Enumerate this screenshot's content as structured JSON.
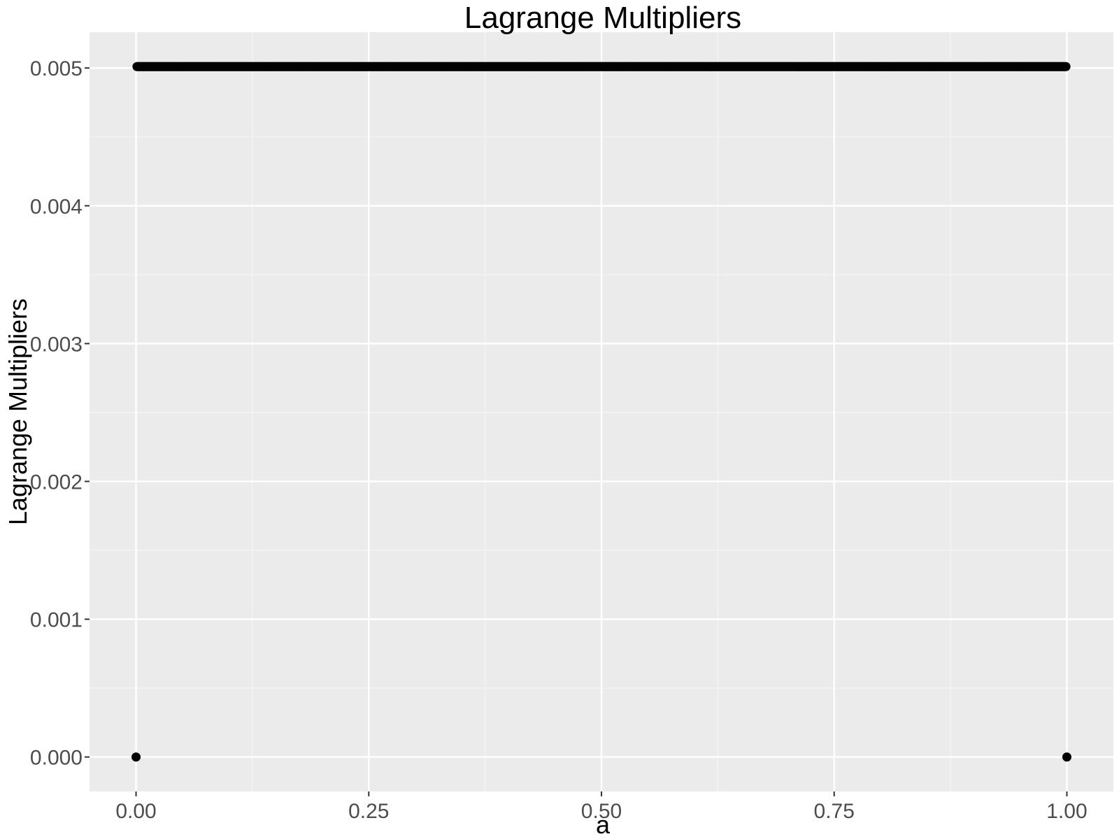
{
  "chart_data": {
    "type": "scatter",
    "title": "Lagrange Multipliers",
    "xlabel": "a",
    "ylabel": "Lagrange Multipliers",
    "xlim": [
      -0.05,
      1.05
    ],
    "ylim": [
      -0.00025,
      0.00526
    ],
    "x_ticks": [
      0,
      0.25,
      0.5,
      0.75,
      1
    ],
    "x_tick_labels": [
      "0.00",
      "0.25",
      "0.50",
      "0.75",
      "1.00"
    ],
    "y_ticks": [
      0,
      0.001,
      0.002,
      0.003,
      0.004,
      0.005
    ],
    "y_tick_labels": [
      "0.000",
      "0.001",
      "0.002",
      "0.003",
      "0.004",
      "0.005"
    ],
    "grid": true,
    "legend": "none",
    "colors": {
      "panel_background": "#ebebeb",
      "grid_major": "#ffffff",
      "grid_minor": "#f5f5f5",
      "points": "#000000",
      "tick_text": "#4d4d4d"
    },
    "series": [
      {
        "points": {
          "description": "dense sequence of points at y = 0.00501 for x from 0.001 to 0.999, plus endpoints at y = 0",
          "endpoints": [
            {
              "x": 0,
              "y": 0
            },
            {
              "x": 1,
              "y": 0
            }
          ],
          "plateau": {
            "x_start": 0.001,
            "x_end": 0.999,
            "y": 0.00501,
            "count": 999
          }
        }
      }
    ]
  }
}
